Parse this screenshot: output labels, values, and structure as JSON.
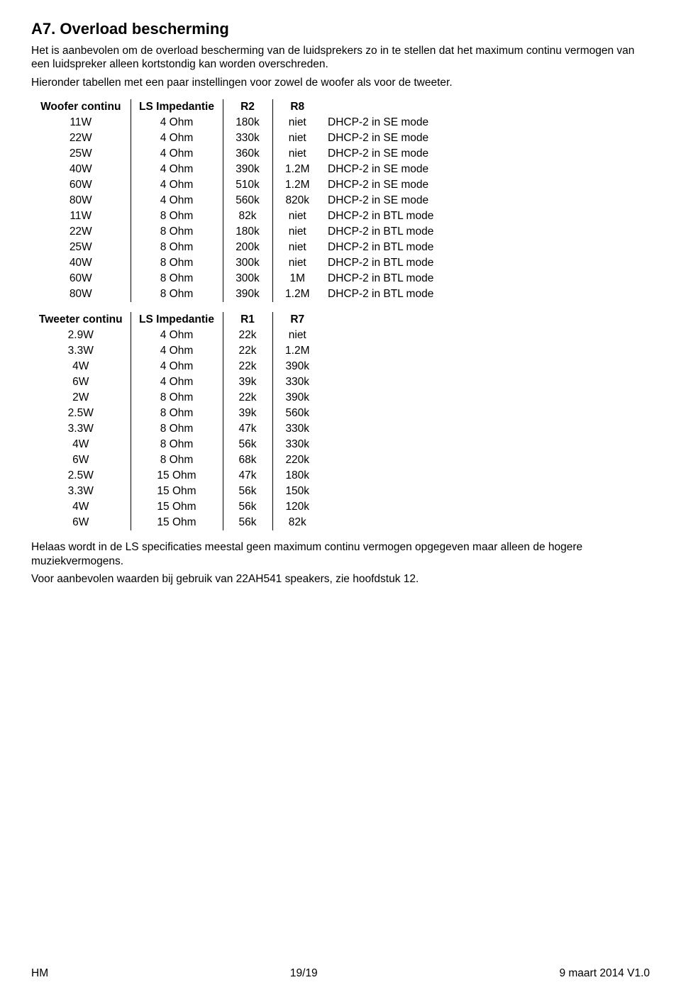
{
  "section": {
    "title": "A7.   Overload bescherming",
    "para1": "Het is aanbevolen om de overload bescherming van de luidsprekers zo in te stellen dat het maximum continu vermogen van een luidspreker alleen kortstondig kan worden overschreden.",
    "para2": "Hieronder tabellen met een paar instellingen voor zowel de woofer als voor de tweeter."
  },
  "woofer_table": {
    "headers": [
      "Woofer continu",
      "LS Impedantie",
      "R2",
      "R8"
    ],
    "rows": [
      [
        "11W",
        "4 Ohm",
        "180k",
        "niet",
        "DHCP-2 in SE mode"
      ],
      [
        "22W",
        "4 Ohm",
        "330k",
        "niet",
        "DHCP-2 in SE mode"
      ],
      [
        "25W",
        "4 Ohm",
        "360k",
        "niet",
        "DHCP-2 in SE mode"
      ],
      [
        "40W",
        "4 Ohm",
        "390k",
        "1.2M",
        "DHCP-2 in SE mode"
      ],
      [
        "60W",
        "4 Ohm",
        "510k",
        "1.2M",
        "DHCP-2 in SE mode"
      ],
      [
        "80W",
        "4 Ohm",
        "560k",
        "820k",
        "DHCP-2 in SE mode"
      ],
      [
        "11W",
        "8 Ohm",
        "82k",
        "niet",
        "DHCP-2 in BTL mode"
      ],
      [
        "22W",
        "8 Ohm",
        "180k",
        "niet",
        "DHCP-2 in BTL mode"
      ],
      [
        "25W",
        "8 Ohm",
        "200k",
        "niet",
        "DHCP-2 in BTL mode"
      ],
      [
        "40W",
        "8 Ohm",
        "300k",
        "niet",
        "DHCP-2 in BTL mode"
      ],
      [
        "60W",
        "8 Ohm",
        "300k",
        "1M",
        "DHCP-2 in BTL mode"
      ],
      [
        "80W",
        "8 Ohm",
        "390k",
        "1.2M",
        "DHCP-2 in BTL mode"
      ]
    ]
  },
  "tweeter_table": {
    "headers": [
      "Tweeter continu",
      "LS Impedantie",
      "R1",
      "R7"
    ],
    "rows": [
      [
        "2.9W",
        "4 Ohm",
        "22k",
        "niet"
      ],
      [
        "3.3W",
        "4 Ohm",
        "22k",
        "1.2M"
      ],
      [
        "4W",
        "4 Ohm",
        "22k",
        "390k"
      ],
      [
        "6W",
        "4 Ohm",
        "39k",
        "330k"
      ],
      [
        "2W",
        "8 Ohm",
        "22k",
        "390k"
      ],
      [
        "2.5W",
        "8 Ohm",
        "39k",
        "560k"
      ],
      [
        "3.3W",
        "8 Ohm",
        "47k",
        "330k"
      ],
      [
        "4W",
        "8 Ohm",
        "56k",
        "330k"
      ],
      [
        "6W",
        "8 Ohm",
        "68k",
        "220k"
      ],
      [
        "2.5W",
        "15 Ohm",
        "47k",
        "180k"
      ],
      [
        "3.3W",
        "15 Ohm",
        "56k",
        "150k"
      ],
      [
        "4W",
        "15 Ohm",
        "56k",
        "120k"
      ],
      [
        "6W",
        "15 Ohm",
        "56k",
        "82k"
      ]
    ]
  },
  "closing": {
    "para1": "Helaas wordt in de LS specificaties meestal geen maximum continu vermogen opgegeven maar alleen de hogere muziekvermogens.",
    "para2": "Voor aanbevolen waarden bij gebruik van 22AH541 speakers, zie hoofdstuk 12."
  },
  "footer": {
    "left": "HM",
    "center": "19/19",
    "right": "9 maart 2014   V1.0"
  }
}
